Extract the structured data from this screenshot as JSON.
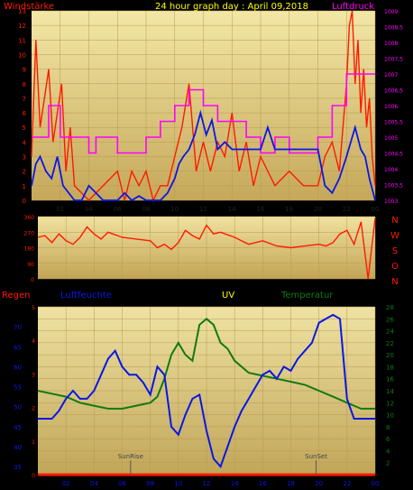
{
  "header": {
    "left_label": "Windstärke",
    "title": "24 hour graph day : April 09,2018",
    "right_label": "Luftdruck"
  },
  "colors": {
    "wind": "#ff1a00",
    "wind_avg": "#0a17e6",
    "pressure": "#ff00ff",
    "direction": "#ff1a00",
    "humidity": "#0a17e6",
    "uv": "#ffff00",
    "temperature": "#117a11",
    "rain": "#ff1a00",
    "title": "#ffff00"
  },
  "chart_data": [
    {
      "type": "line",
      "name": "wind-and-pressure",
      "xlabel": "",
      "ylabel_left": "Windstärke",
      "ylabel_right": "Luftdruck",
      "x_ticks": [
        "02",
        "04",
        "06",
        "08",
        "10",
        "12",
        "14",
        "16",
        "18",
        "20",
        "22",
        "00"
      ],
      "y_left_ticks": [
        0,
        1,
        2,
        3,
        4,
        5,
        6,
        7,
        8,
        9,
        10,
        11,
        12,
        13
      ],
      "y_right_ticks": [
        "1003",
        "1003,5",
        "1004",
        "1004,5",
        "1005",
        "1005,5",
        "1006",
        "1006,5",
        "1007",
        "1007,5",
        "1008",
        "1008,5",
        "1009"
      ],
      "ylim_left": [
        0,
        13
      ],
      "ylim_right": [
        1003,
        1009
      ],
      "series": [
        {
          "name": "gust",
          "x": [
            0,
            0.3,
            0.6,
            0.9,
            1.2,
            1.5,
            1.8,
            2.1,
            2.4,
            2.7,
            3,
            4,
            5,
            6,
            6.5,
            7,
            7.5,
            8,
            8.5,
            9,
            9.5,
            10,
            10.5,
            11,
            11.5,
            12,
            12.5,
            13,
            13.5,
            14,
            14.5,
            15,
            15.5,
            16,
            17,
            18,
            19,
            20,
            20.5,
            21,
            21.5,
            22,
            22.2,
            22.4,
            22.6,
            22.8,
            23,
            23.2,
            23.4,
            23.6,
            23.8,
            24
          ],
          "values": [
            3,
            11,
            5,
            7,
            9,
            4,
            6,
            8,
            2,
            5,
            1,
            0,
            1,
            2,
            0,
            2,
            1,
            2,
            0,
            1,
            1,
            3,
            5,
            8,
            2,
            4,
            2,
            4,
            3,
            6,
            2,
            4,
            1,
            3,
            1,
            2,
            1,
            1,
            3,
            4,
            2,
            8,
            12,
            13,
            8,
            11,
            6,
            9,
            5,
            7,
            3,
            1
          ]
        },
        {
          "name": "average",
          "x": [
            0,
            0.3,
            0.6,
            1,
            1.4,
            1.8,
            2.2,
            2.6,
            3,
            3.5,
            4,
            5,
            6,
            6.5,
            7,
            7.5,
            8,
            8.5,
            9,
            9.5,
            10,
            10.3,
            10.6,
            11,
            11.4,
            11.8,
            12.2,
            12.6,
            13,
            13.5,
            14,
            15,
            16,
            16.5,
            17,
            18,
            19,
            20,
            20.5,
            21,
            21.5,
            22,
            22.3,
            22.6,
            23,
            23.3,
            23.6,
            24
          ],
          "values": [
            1,
            2.5,
            3,
            2,
            1.5,
            3,
            1,
            0.5,
            0,
            0,
            1,
            0,
            0,
            0.5,
            0,
            0.3,
            0,
            0,
            0,
            0.5,
            1.5,
            2.5,
            3,
            3.5,
            4.5,
            6,
            4.5,
            5.5,
            3.5,
            4,
            3.5,
            3.5,
            3.5,
            5,
            3.5,
            3.5,
            3.5,
            3.5,
            1,
            0.5,
            1.5,
            3,
            4,
            5,
            3.5,
            3,
            1.5,
            0
          ]
        },
        {
          "name": "pressure",
          "x": [
            0,
            1.2,
            1.2,
            2,
            2,
            4,
            4,
            4.5,
            4.5,
            6,
            6,
            8,
            8,
            9,
            9,
            10,
            10,
            11,
            11,
            12,
            12,
            13,
            13,
            15,
            15,
            16,
            16,
            17,
            17,
            18,
            18,
            20,
            20,
            21,
            21,
            22,
            22,
            24
          ],
          "values": [
            1005,
            1005,
            1006,
            1006,
            1005,
            1005,
            1004.5,
            1004.5,
            1005,
            1005,
            1004.5,
            1004.5,
            1005,
            1005,
            1005.5,
            1005.5,
            1006,
            1006,
            1006.5,
            1006.5,
            1006,
            1006,
            1005.5,
            1005.5,
            1005,
            1005,
            1004.5,
            1004.5,
            1005,
            1005,
            1004.5,
            1004.5,
            1005,
            1005,
            1006,
            1006,
            1007,
            1007
          ]
        }
      ]
    },
    {
      "type": "line",
      "name": "wind-direction",
      "ylabel_right": [
        "N",
        "W",
        "S",
        "O",
        "N"
      ],
      "y_left_ticks": [
        0,
        90,
        180,
        270,
        360
      ],
      "ylim": [
        0,
        360
      ],
      "x_ticks": [
        "02",
        "04",
        "06",
        "08",
        "10",
        "12",
        "14",
        "16",
        "18",
        "20",
        "22",
        "00"
      ],
      "series": [
        {
          "name": "direction",
          "x": [
            0,
            0.5,
            1,
            1.5,
            2,
            2.5,
            3,
            3.5,
            4,
            4.5,
            5,
            6,
            7,
            8,
            8.5,
            9,
            9.5,
            10,
            10.5,
            11,
            11.5,
            12,
            12.5,
            13,
            14,
            15,
            16,
            17,
            18,
            19,
            20,
            20.5,
            21,
            21.5,
            22,
            22.5,
            23,
            23.5,
            24
          ],
          "values": [
            240,
            250,
            210,
            260,
            220,
            200,
            240,
            300,
            260,
            230,
            270,
            240,
            230,
            220,
            180,
            200,
            170,
            210,
            280,
            250,
            230,
            310,
            260,
            270,
            240,
            200,
            220,
            190,
            180,
            190,
            200,
            190,
            210,
            260,
            280,
            200,
            330,
            0,
            350
          ]
        }
      ]
    },
    {
      "type": "line",
      "name": "humidity-uv-temperature",
      "labels": [
        "Regen",
        "Luftfeuchte",
        "UV",
        "Temperatur"
      ],
      "annotations": [
        "SunRise",
        "SunSet"
      ],
      "y_left_ticks": [
        35,
        40,
        45,
        50,
        55,
        60,
        65,
        70
      ],
      "y_rain_ticks": [
        0,
        1,
        2,
        3,
        4,
        5
      ],
      "y_right_ticks": [
        2,
        4,
        6,
        8,
        10,
        12,
        14,
        16,
        18,
        20,
        22,
        24,
        26,
        28
      ],
      "ylim_humidity": [
        33,
        75
      ],
      "ylim_temperature": [
        0,
        28
      ],
      "x_ticks": [
        "02",
        "04",
        "06",
        "08",
        "10",
        "12",
        "14",
        "16",
        "18",
        "20",
        "22",
        "00"
      ],
      "series": [
        {
          "name": "Luftfeuchte",
          "x": [
            0,
            0.5,
            1,
            1.5,
            2,
            2.5,
            3,
            3.5,
            4,
            4.5,
            5,
            5.5,
            6,
            6.5,
            7,
            7.5,
            8,
            8.5,
            9,
            9.5,
            10,
            10.5,
            11,
            11.5,
            12,
            12.5,
            13,
            13.5,
            14,
            14.5,
            15,
            15.5,
            16,
            16.5,
            17,
            17.5,
            18,
            18.5,
            19,
            19.5,
            20,
            20.5,
            21,
            21.5,
            22,
            22.5,
            23,
            23.5,
            24
          ],
          "values": [
            47,
            47,
            47,
            49,
            52,
            54,
            52,
            52,
            54,
            58,
            62,
            64,
            60,
            58,
            58,
            56,
            53,
            60,
            58,
            45,
            43,
            48,
            52,
            53,
            44,
            37,
            35,
            40,
            45,
            49,
            52,
            55,
            58,
            59,
            57,
            60,
            59,
            62,
            64,
            66,
            71,
            72,
            73,
            72,
            52,
            47,
            47,
            47,
            47
          ]
        },
        {
          "name": "Temperatur",
          "x": [
            0,
            1,
            2,
            3,
            4,
            5,
            6,
            7,
            8,
            8.5,
            9,
            9.5,
            10,
            10.5,
            11,
            11.5,
            12,
            12.5,
            13,
            13.5,
            14,
            15,
            16,
            17,
            18,
            19,
            20,
            21,
            22,
            23,
            24
          ],
          "values": [
            14,
            13.5,
            13,
            12,
            11.5,
            11,
            11,
            11.5,
            12,
            13,
            16,
            20,
            22,
            20,
            19,
            25,
            26,
            25,
            22,
            21,
            19,
            17,
            16.5,
            16,
            15.5,
            15,
            14,
            13,
            12,
            11,
            11
          ]
        },
        {
          "name": "Regen",
          "x": [
            0,
            24
          ],
          "values": [
            0,
            0
          ]
        }
      ],
      "markers": {
        "sunrise_hour": 6.6,
        "sunset_hour": 19.8
      }
    }
  ]
}
